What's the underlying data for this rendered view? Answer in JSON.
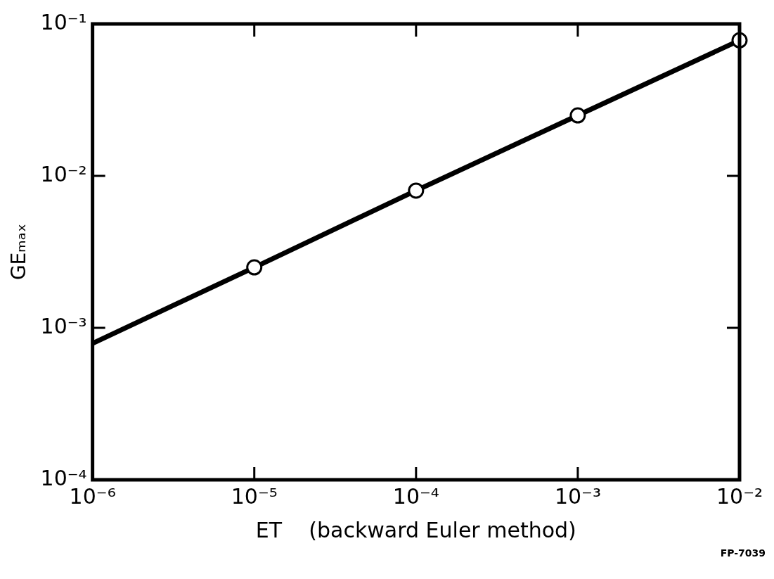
{
  "chart_data": {
    "type": "line",
    "xlabel": "ET    (backward Euler method)",
    "ylabel": "GEₘₐₓ",
    "log": "xy",
    "grid": false,
    "legend": false,
    "xlim": [
      1e-06,
      0.01
    ],
    "ylim": [
      0.0001,
      0.1
    ],
    "xticks": [
      {
        "value": 1e-06,
        "label": "10⁻⁶"
      },
      {
        "value": 1e-05,
        "label": "10⁻⁵"
      },
      {
        "value": 0.0001,
        "label": "10⁻⁴"
      },
      {
        "value": 0.001,
        "label": "10⁻³"
      },
      {
        "value": 0.01,
        "label": "10⁻²"
      }
    ],
    "yticks": [
      {
        "value": 0.0001,
        "label": "10⁻⁴"
      },
      {
        "value": 0.001,
        "label": "10⁻³"
      },
      {
        "value": 0.01,
        "label": "10⁻²"
      },
      {
        "value": 0.1,
        "label": "10⁻¹"
      }
    ],
    "series": [
      {
        "color": "#000000",
        "marker": "none",
        "line_style": "solid",
        "x": [
          1e-06,
          1e-05,
          0.0001,
          0.001,
          0.01
        ],
        "values": [
          0.00079,
          0.0025,
          0.008,
          0.025,
          0.078
        ]
      },
      {
        "type": "scatter",
        "color": "#000000",
        "marker": "circle",
        "x": [
          1e-05,
          0.0001,
          0.001,
          0.01
        ],
        "values": [
          0.0025,
          0.008,
          0.025,
          0.078
        ]
      }
    ],
    "annotations": [
      "FP-7039"
    ]
  }
}
